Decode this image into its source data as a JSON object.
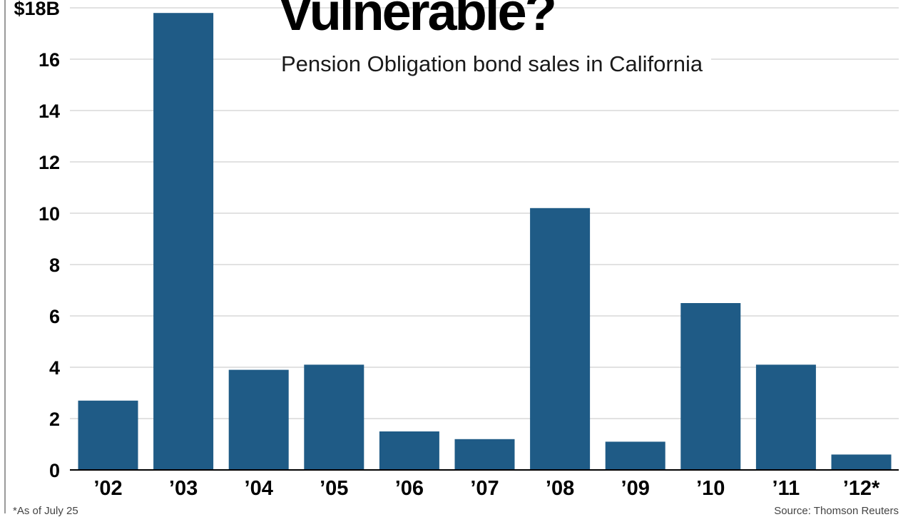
{
  "chart_data": {
    "type": "bar",
    "title": "Vulnerable?",
    "subtitle": "Pension Obligation bond sales in California",
    "categories": [
      "’02",
      "’03",
      "’04",
      "’05",
      "’06",
      "’07",
      "’08",
      "’09",
      "’10",
      "’11",
      "’12*"
    ],
    "values": [
      2.7,
      17.8,
      3.9,
      4.1,
      1.5,
      1.2,
      10.2,
      1.1,
      6.5,
      4.1,
      0.6
    ],
    "ylim": [
      0,
      18
    ],
    "yticks": [
      0,
      2,
      4,
      6,
      8,
      10,
      12,
      14,
      16,
      18
    ],
    "ytick_labels": [
      "0",
      "2",
      "4",
      "6",
      "8",
      "10",
      "12",
      "14",
      "16",
      "$18B"
    ],
    "grid": true,
    "bar_color": "#1f5b86",
    "grid_color": "#d9d9d9",
    "footnote": "*As of July 25",
    "source": "Source: Thomson Reuters"
  }
}
